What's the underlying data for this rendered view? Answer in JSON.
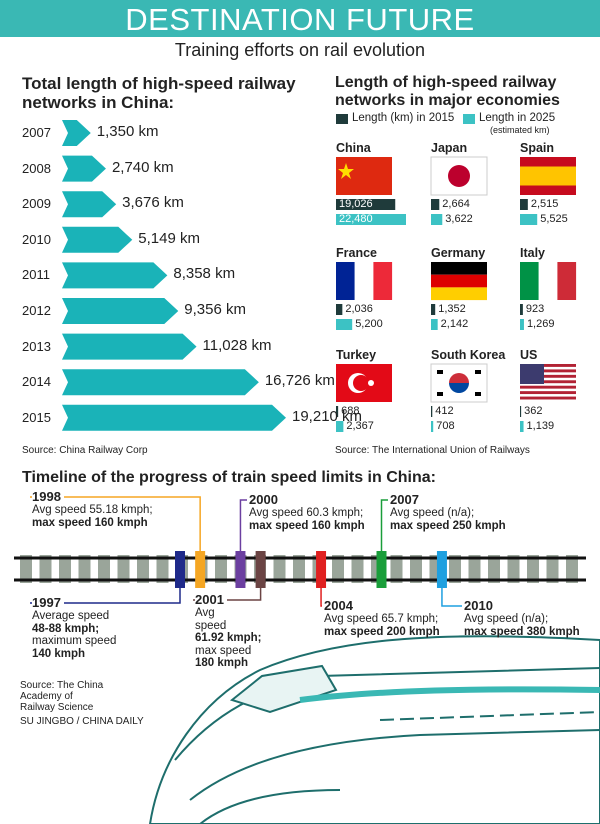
{
  "header": {
    "title": "DESTINATION FUTURE",
    "subtitle": "Training efforts on rail evolution"
  },
  "chart_data": [
    {
      "type": "hbar-arrow",
      "title": "Total length of high-speed railway networks in China:",
      "categories": [
        "2007",
        "2008",
        "2009",
        "2010",
        "2011",
        "2012",
        "2013",
        "2014",
        "2015"
      ],
      "values": [
        1350,
        2740,
        3676,
        5149,
        8358,
        9356,
        11028,
        16726,
        19210
      ],
      "value_labels": [
        "1,350 km",
        "2,740 km",
        "3,676 km",
        "5,149 km",
        "8,358 km",
        "9,356 km",
        "11,028 km",
        "16,726 km",
        "19,210 km"
      ],
      "color": "#1ab3b8",
      "source": "Source: China Railway Corp"
    },
    {
      "type": "small-multiples",
      "title": "Length of high-speed railway networks in major economies",
      "categories": [
        "China",
        "Japan",
        "Spain",
        "France",
        "Germany",
        "Italy",
        "Turkey",
        "South Korea",
        "US"
      ],
      "series": [
        {
          "name": "Length (km) in 2015",
          "color": "#1f3b3b",
          "values": [
            19026,
            2664,
            2515,
            2036,
            1352,
            923,
            688,
            412,
            362
          ],
          "value_labels": [
            "19,026",
            "2,664",
            "2,515",
            "2,036",
            "1,352",
            "923",
            "688",
            "412",
            "362"
          ]
        },
        {
          "name": "Length in 2025",
          "color": "#3cc2c4",
          "values": [
            22480,
            3622,
            5525,
            5200,
            2142,
            1269,
            2367,
            708,
            1139
          ],
          "value_labels": [
            "22,480",
            "3,622",
            "5,525",
            "5,200",
            "2,142",
            "1,269",
            "2,367",
            "708",
            "1,139"
          ]
        }
      ],
      "legend_note": "(estimated km)",
      "source": "Source: The International Union of Railways"
    }
  ],
  "timeline": {
    "title": "Timeline of the progress of train speed limits in China:",
    "events": [
      {
        "year": "1997",
        "side": "below",
        "color": "#1f2a8a",
        "lines": [
          "Average speed",
          "48-88 kmph;",
          "maximum speed",
          "140 kmph"
        ]
      },
      {
        "year": "1998",
        "side": "above",
        "color": "#f5a623",
        "lines": [
          "Avg speed 55.18 kmph;",
          "max speed 160 kmph"
        ]
      },
      {
        "year": "2000",
        "side": "above",
        "color": "#6b3fa0",
        "lines": [
          "Avg speed 60.3 kmph;",
          "max speed 160 kmph"
        ]
      },
      {
        "year": "2001",
        "side": "below",
        "color": "#6b4444",
        "lines": [
          "Avg",
          "speed",
          "61.92 kmph;",
          "max speed",
          "180 kmph"
        ]
      },
      {
        "year": "2004",
        "side": "below",
        "color": "#e02020",
        "lines": [
          "Avg speed 65.7 kmph;",
          "max speed 200 kmph"
        ]
      },
      {
        "year": "2007",
        "side": "above",
        "color": "#1a9e3a",
        "lines": [
          "Avg speed (n/a);",
          "max speed 250 kmph"
        ]
      },
      {
        "year": "2010",
        "side": "below",
        "color": "#1ea0e0",
        "lines": [
          "Avg speed (n/a);",
          "max speed 380 kmph"
        ]
      }
    ],
    "source": [
      "Source: The China",
      "Academy of",
      "Railway Science"
    ],
    "credit": "SU JINGBO / CHINA DAILY"
  }
}
